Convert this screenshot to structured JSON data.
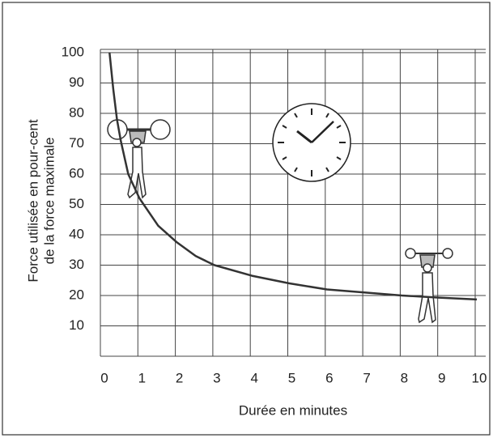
{
  "chart_data": {
    "type": "line",
    "y_label": [
      "Force utilisée en pour-cent",
      "de la force maximale"
    ],
    "x_label": "Durée en minutes",
    "x": [
      0.2,
      0.3,
      0.4,
      0.5,
      0.7,
      1,
      1.5,
      2,
      2.5,
      3,
      4,
      5,
      6,
      7,
      8,
      9,
      10
    ],
    "series": [
      {
        "color": "#333333",
        "values": [
          100,
          88,
          78,
          71,
          60,
          52,
          43,
          37.5,
          33,
          30,
          26.5,
          24,
          22,
          21,
          20,
          19.3,
          18.7
        ]
      }
    ],
    "xlim": [
      0,
      10
    ],
    "xticks": [
      0,
      1,
      2,
      3,
      4,
      5,
      6,
      7,
      8,
      9,
      10
    ],
    "ylim": [
      0,
      100
    ],
    "yticks": [
      10,
      20,
      30,
      40,
      50,
      60,
      70,
      80,
      90,
      100
    ],
    "grid": true
  }
}
